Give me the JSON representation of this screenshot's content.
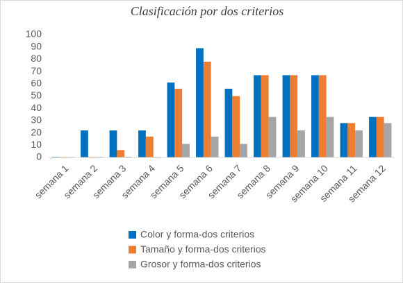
{
  "chart_data": {
    "type": "bar",
    "title": "Clasificación por dos criterios",
    "categories": [
      "semana 1",
      "semana 2",
      "semana 3",
      "semana 4",
      "semana 5",
      "semana 6",
      "semana 7",
      "semana 8",
      "semana 9",
      "semana 10",
      "semana 11",
      "semana 12"
    ],
    "series": [
      {
        "name": "Color y forma-dos criterios",
        "color": "#0070c0",
        "values": [
          0,
          22,
          22,
          22,
          61,
          89,
          56,
          67,
          67,
          67,
          28,
          33
        ]
      },
      {
        "name": "Tamaño y forma-dos criterios",
        "color": "#ed7d31",
        "values": [
          0,
          0,
          6,
          17,
          56,
          78,
          50,
          67,
          67,
          67,
          28,
          33
        ]
      },
      {
        "name": "Grosor y forma-dos criterios",
        "color": "#a5a5a5",
        "values": [
          0,
          0,
          0,
          0,
          11,
          17,
          11,
          33,
          22,
          33,
          22,
          28
        ]
      }
    ],
    "ylim": [
      0,
      100
    ],
    "yticks": [
      0,
      10,
      20,
      30,
      40,
      50,
      60,
      70,
      80,
      90,
      100
    ],
    "grid": false,
    "legend": "bottom"
  }
}
